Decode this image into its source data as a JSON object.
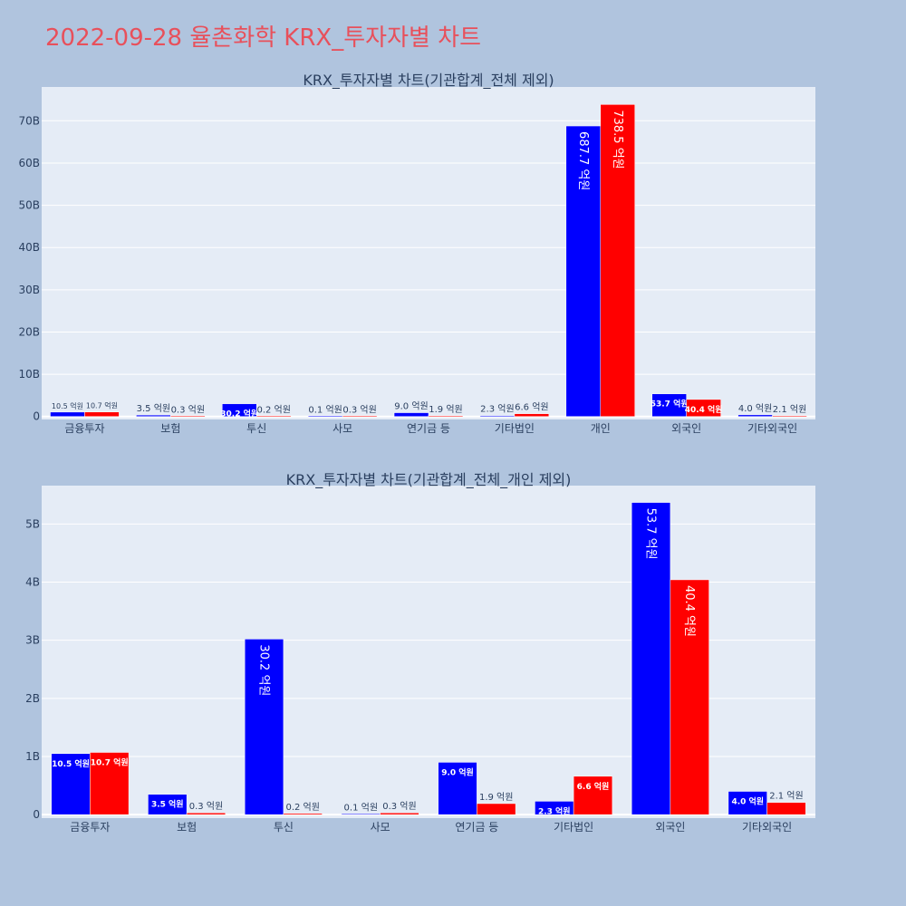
{
  "page": {
    "title": "2022-09-28 율촌화학 KRX_투자자별 차트",
    "colors": {
      "background": "#b0c4de",
      "plot_background": "#e5ecf6",
      "title": "#e8505b",
      "buy": "#0000ff",
      "sell": "#ff0000"
    }
  },
  "chart_data": [
    {
      "type": "bar",
      "title": "KRX_투자자별 차트(기관합계_전체 제외)",
      "categories": [
        "금융투자",
        "보험",
        "투신",
        "사모",
        "연기금 등",
        "기타법인",
        "개인",
        "외국인",
        "기타외국인"
      ],
      "series": [
        {
          "color": "#0000ff",
          "values": [
            1.05,
            0.35,
            3.02,
            0.01,
            0.9,
            0.23,
            68.77,
            5.37,
            0.4
          ],
          "labels": [
            "10.5 억원",
            "3.5 억원",
            "30.2 억원",
            "0.1 억원",
            "9.0 억원",
            "2.3 억원",
            "687.7 억원",
            "53.7 억원",
            "4.0 억원"
          ]
        },
        {
          "color": "#ff0000",
          "values": [
            1.07,
            0.03,
            0.02,
            0.03,
            0.19,
            0.66,
            73.85,
            4.04,
            0.21
          ],
          "labels": [
            "10.7 억원",
            "0.3 억원",
            "0.2 억원",
            "0.3 억원",
            "1.9 억원",
            "6.6 억원",
            "738.5 억원",
            "40.4 억원",
            "2.1 억원"
          ]
        }
      ],
      "yticks": [
        0,
        10,
        20,
        30,
        40,
        50,
        60,
        70
      ],
      "ytick_labels": [
        "0",
        "10B",
        "20B",
        "30B",
        "40B",
        "50B",
        "60B",
        "70B"
      ],
      "ylim": [
        -0.7,
        78
      ],
      "grid": true
    },
    {
      "type": "bar",
      "title": "KRX_투자자별 차트(기관합계_전체_개인 제외)",
      "categories": [
        "금융투자",
        "보험",
        "투신",
        "사모",
        "연기금 등",
        "기타법인",
        "외국인",
        "기타외국인"
      ],
      "series": [
        {
          "color": "#0000ff",
          "values": [
            1.05,
            0.35,
            3.02,
            0.01,
            0.9,
            0.23,
            5.37,
            0.4
          ],
          "labels": [
            "10.5 억원",
            "3.5 억원",
            "30.2 억원",
            "0.1 억원",
            "9.0 억원",
            "2.3 억원",
            "53.7 억원",
            "4.0 억원"
          ]
        },
        {
          "color": "#ff0000",
          "values": [
            1.07,
            0.03,
            0.02,
            0.03,
            0.19,
            0.66,
            4.04,
            0.21
          ],
          "labels": [
            "10.7 억원",
            "0.3 억원",
            "0.2 억원",
            "0.3 억원",
            "1.9 억원",
            "6.6 억원",
            "40.4 억원",
            "2.1 억원"
          ]
        }
      ],
      "yticks": [
        0,
        1,
        2,
        3,
        4,
        5
      ],
      "ytick_labels": [
        "0",
        "1B",
        "2B",
        "3B",
        "4B",
        "5B"
      ],
      "ylim": [
        -0.06,
        5.66
      ],
      "grid": true
    }
  ]
}
